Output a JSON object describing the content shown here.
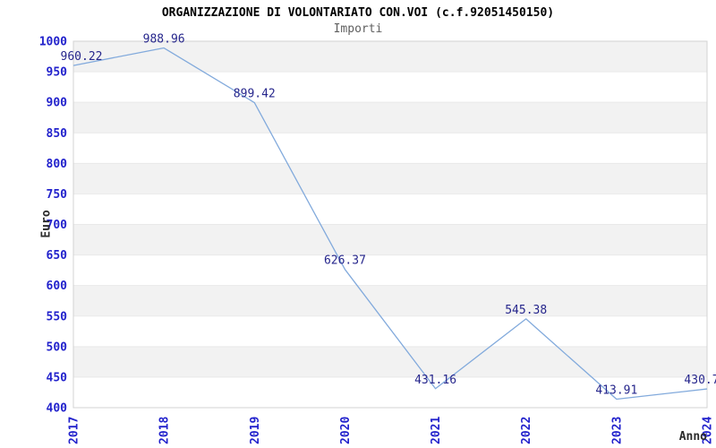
{
  "chart_data": {
    "type": "line",
    "title": "ORGANIZZAZIONE DI VOLONTARIATO CON.VOI (c.f.92051450150)",
    "subtitle": "Importi",
    "xlabel": "Anno",
    "ylabel": "Euro",
    "categories": [
      "2017",
      "2018",
      "2019",
      "2020",
      "2021",
      "2022",
      "2023",
      "2024"
    ],
    "series": [
      {
        "name": "Importi",
        "values": [
          960.22,
          988.96,
          899.42,
          626.37,
          431.16,
          545.38,
          413.91,
          430.7
        ],
        "data_labels": [
          "960.22",
          "988.96",
          "899.42",
          "626.37",
          "431.16",
          "545.38",
          "413.91",
          "430.7"
        ]
      }
    ],
    "ylim": [
      400,
      1000
    ],
    "y_tick_step": 50,
    "y_tick_labels": [
      "400",
      "450",
      "500",
      "550",
      "600",
      "650",
      "700",
      "750",
      "800",
      "850",
      "900",
      "950",
      "1000"
    ],
    "grid": "horizontal-alternating-bands",
    "legend": "none",
    "markers": "none",
    "colors": {
      "line": "#82aadc",
      "band": "#f2f2f2",
      "gridline": "#e9e9e9",
      "frame": "#d3d3d3",
      "tick_label": "#2222cc",
      "data_label": "#26268c",
      "title": "#000000",
      "subtitle": "#5f5f5f",
      "axis_name": "#2b2b2b",
      "background": "#ffffff"
    }
  }
}
